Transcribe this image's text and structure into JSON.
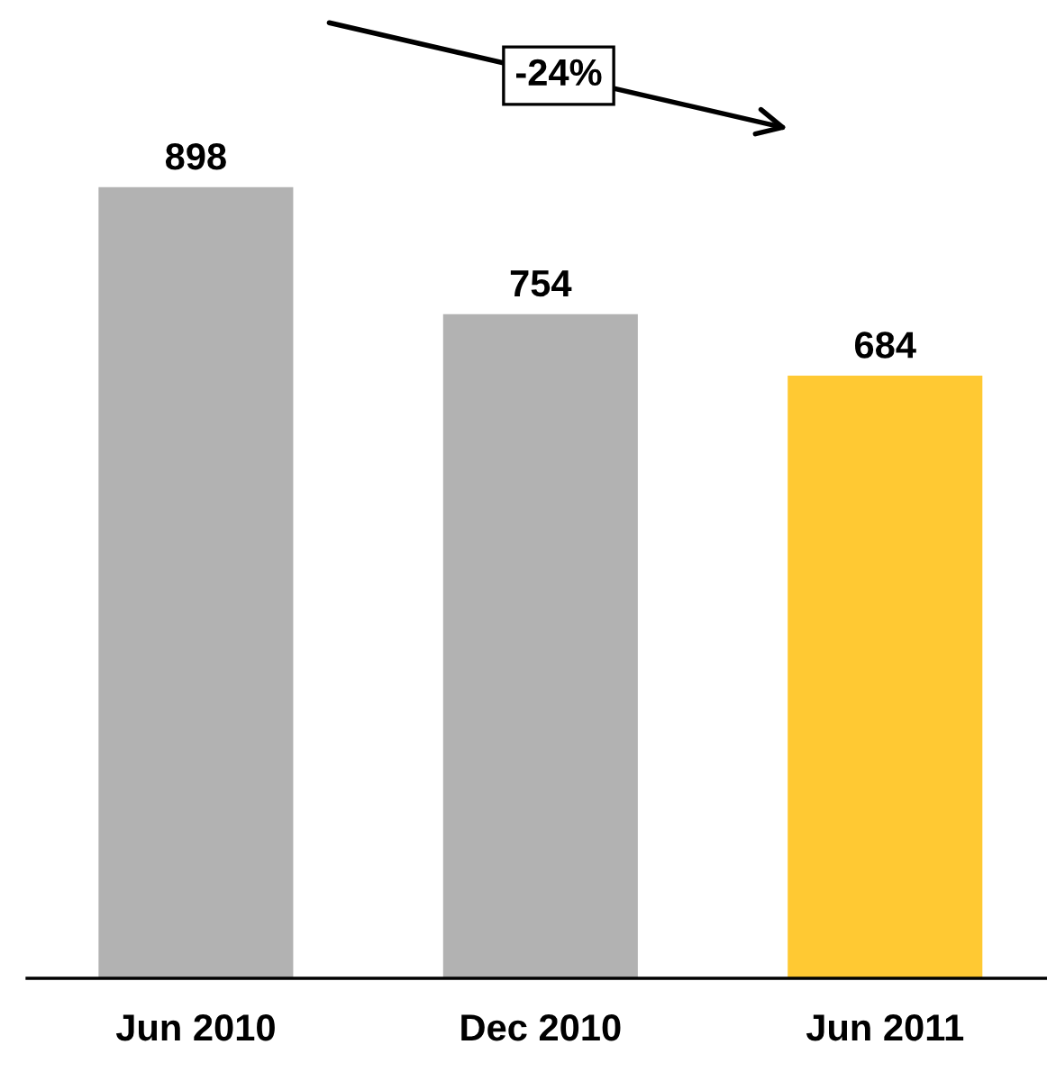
{
  "chart_data": {
    "type": "bar",
    "categories": [
      "Jun 2010",
      "Dec 2010",
      "Jun 2011"
    ],
    "values": [
      898,
      754,
      684
    ],
    "colors": [
      "#b2b2b2",
      "#b2b2b2",
      "#ffc933"
    ],
    "data_labels": true,
    "tick_labels": "x",
    "grid": false,
    "legend": false,
    "annotations": [
      "-24%"
    ]
  }
}
